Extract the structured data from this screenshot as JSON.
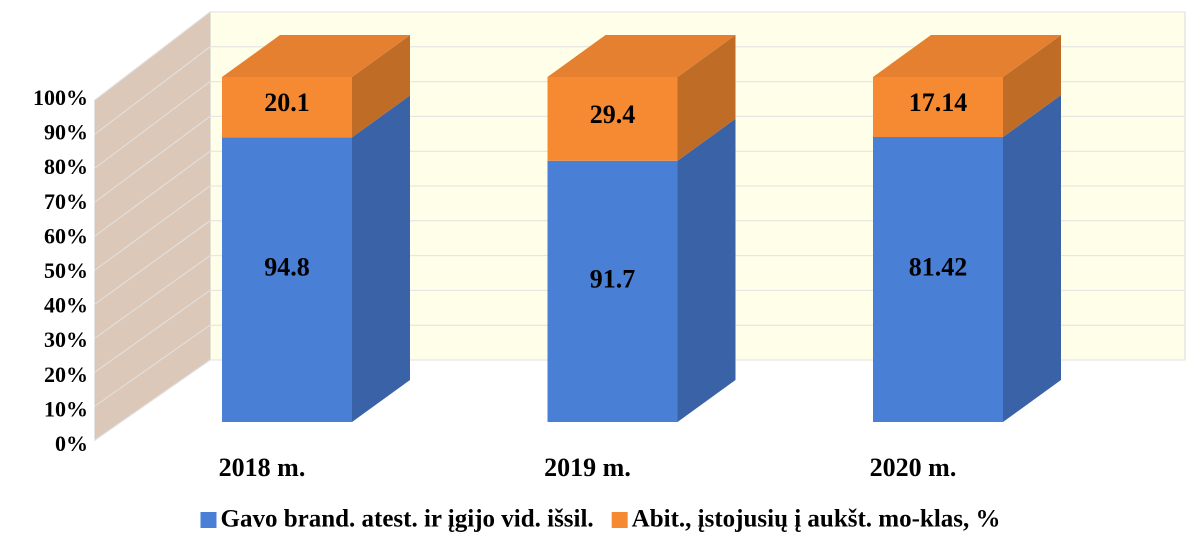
{
  "chart_data": {
    "type": "bar",
    "stacking": "percent",
    "3d": true,
    "categories": [
      "2018 m.",
      "2019 m.",
      "2020 m."
    ],
    "series": [
      {
        "name": "Gavo brand. atest. ir įgijo vid. išsil.",
        "color": "#4a7fd6",
        "values": [
          94.8,
          91.7,
          81.42
        ]
      },
      {
        "name": "Abit., įstojusių į aukšt. mo-klas, %",
        "color": "#f58a32",
        "values": [
          20.1,
          29.4,
          17.14
        ]
      }
    ],
    "ylim": [
      0,
      100
    ],
    "yticks": [
      {
        "value": 0,
        "label": "0%"
      },
      {
        "value": 10,
        "label": "10%"
      },
      {
        "value": 20,
        "label": "20%"
      },
      {
        "value": 30,
        "label": "30%"
      },
      {
        "value": 40,
        "label": "40%"
      },
      {
        "value": 50,
        "label": "50%"
      },
      {
        "value": 60,
        "label": "60%"
      },
      {
        "value": 70,
        "label": "70%"
      },
      {
        "value": 80,
        "label": "80%"
      },
      {
        "value": 90,
        "label": "90%"
      },
      {
        "value": 100,
        "label": "100%"
      }
    ],
    "grid": true,
    "legend": "bottom"
  }
}
